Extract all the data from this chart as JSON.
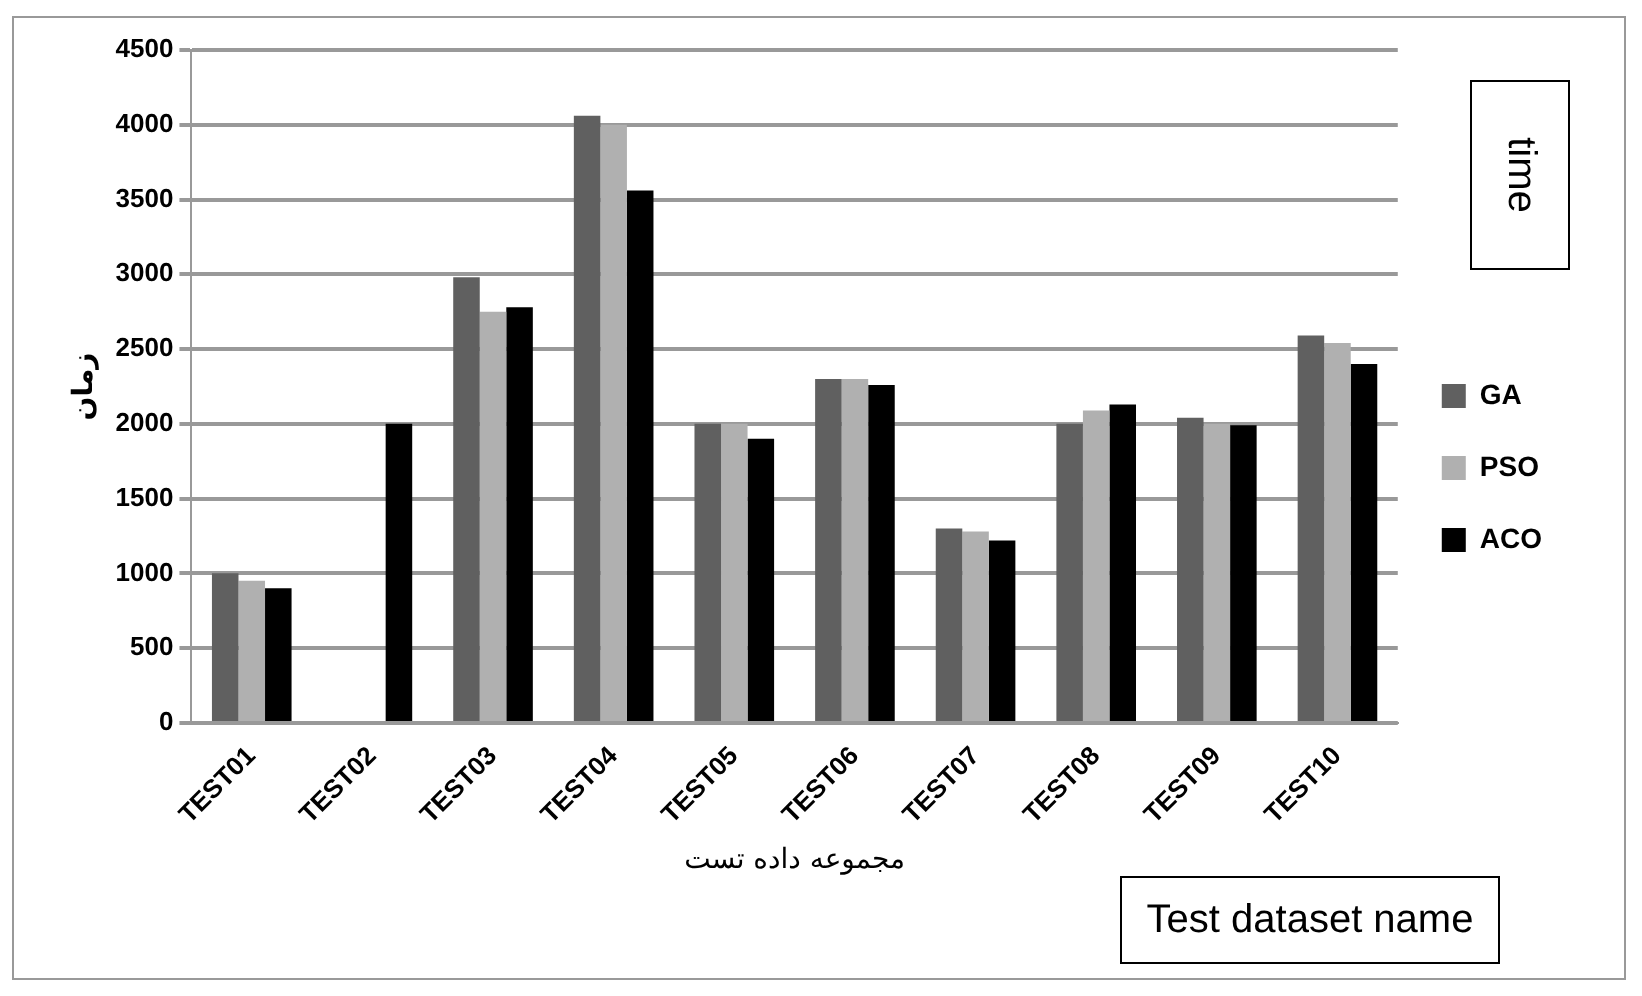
{
  "chart_data": {
    "type": "bar",
    "xlabel": "مجموعه داده تست",
    "ylabel": "زمان",
    "annotations": [
      "time",
      "Test dataset name"
    ],
    "categories": [
      "TEST01",
      "TEST02",
      "TEST03",
      "TEST04",
      "TEST05",
      "TEST06",
      "TEST07",
      "TEST08",
      "TEST09",
      "TEST10"
    ],
    "series": [
      {
        "name": "GA",
        "color": "#606060",
        "values": [
          1000,
          null,
          2980,
          4060,
          2000,
          2300,
          1300,
          2000,
          2040,
          2590
        ]
      },
      {
        "name": "PSO",
        "color": "#b0b0b0",
        "values": [
          950,
          null,
          2750,
          4000,
          2000,
          2300,
          1280,
          2090,
          2000,
          2540
        ]
      },
      {
        "name": "ACO",
        "color": "#000000",
        "values": [
          900,
          2000,
          2780,
          3560,
          1900,
          2260,
          1220,
          2130,
          1990,
          2400
        ]
      }
    ],
    "ylim": [
      0,
      4500
    ],
    "yticks": [
      0,
      500,
      1000,
      1500,
      2000,
      2500,
      3000,
      3500,
      4000,
      4500
    ],
    "grid": "y",
    "legend": "right"
  }
}
